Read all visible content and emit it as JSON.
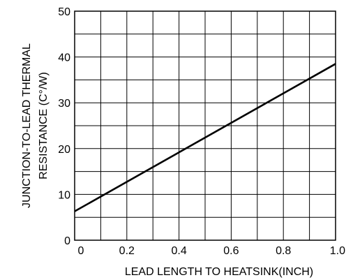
{
  "chart_data": {
    "type": "line",
    "title": "",
    "xlabel": "LEAD LENGTH TO HEATSINK(INCH)",
    "ylabel_lines": [
      "JUNCTION-TO-LEAD THERMAL",
      "RESISTANCE (C°/W)"
    ],
    "xlim": [
      0,
      1.0
    ],
    "ylim": [
      0,
      50
    ],
    "x_ticks": [
      0,
      0.2,
      0.4,
      0.6,
      0.8,
      1.0
    ],
    "x_tick_labels": [
      "0",
      "0.2",
      "0.4",
      "0.6",
      "0.8",
      "1.0"
    ],
    "y_ticks": [
      0,
      10,
      20,
      30,
      40,
      50
    ],
    "y_tick_labels": [
      "0",
      "10",
      "20",
      "30",
      "40",
      "50"
    ],
    "grid": true,
    "x_grid_step": 0.1,
    "y_grid_step": 5,
    "series": [
      {
        "x": [
          0,
          1.0
        ],
        "y": [
          6.3,
          38.5
        ]
      }
    ]
  }
}
